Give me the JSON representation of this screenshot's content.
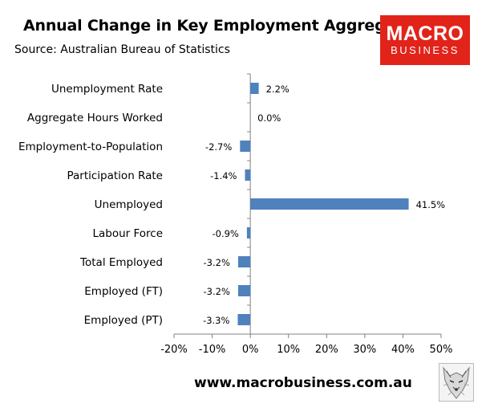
{
  "header": {
    "title": "Annual Change in Key Employment Aggregates",
    "subtitle": "Source: Australian Bureau of Statistics"
  },
  "logo": {
    "top": "MACRO",
    "bottom": "BUSINESS",
    "color": "#e2231a"
  },
  "footer": {
    "url": "www.macrobusiness.com.au"
  },
  "chart_data": {
    "type": "bar",
    "orientation": "horizontal",
    "categories": [
      "Unemployment Rate",
      "Aggregate Hours Worked",
      "Employment-to-Population",
      "Participation Rate",
      "Unemployed",
      "Labour Force",
      "Total Employed",
      "Employed (FT)",
      "Employed (PT)"
    ],
    "values": [
      2.2,
      0.0,
      -2.7,
      -1.4,
      41.5,
      -0.9,
      -3.2,
      -3.2,
      -3.3
    ],
    "data_labels": [
      "2.2%",
      "0.0%",
      "-2.7%",
      "-1.4%",
      "41.5%",
      "-0.9%",
      "-3.2%",
      "-3.2%",
      "-3.3%"
    ],
    "xlim": [
      -20,
      50
    ],
    "x_ticks": [
      -20,
      -10,
      0,
      10,
      20,
      30,
      40,
      50
    ],
    "x_tick_labels": [
      "-20%",
      "-10%",
      "0%",
      "10%",
      "20%",
      "30%",
      "40%",
      "50%"
    ],
    "bar_color": "#4f81bd",
    "grid": false,
    "legend": "none"
  }
}
